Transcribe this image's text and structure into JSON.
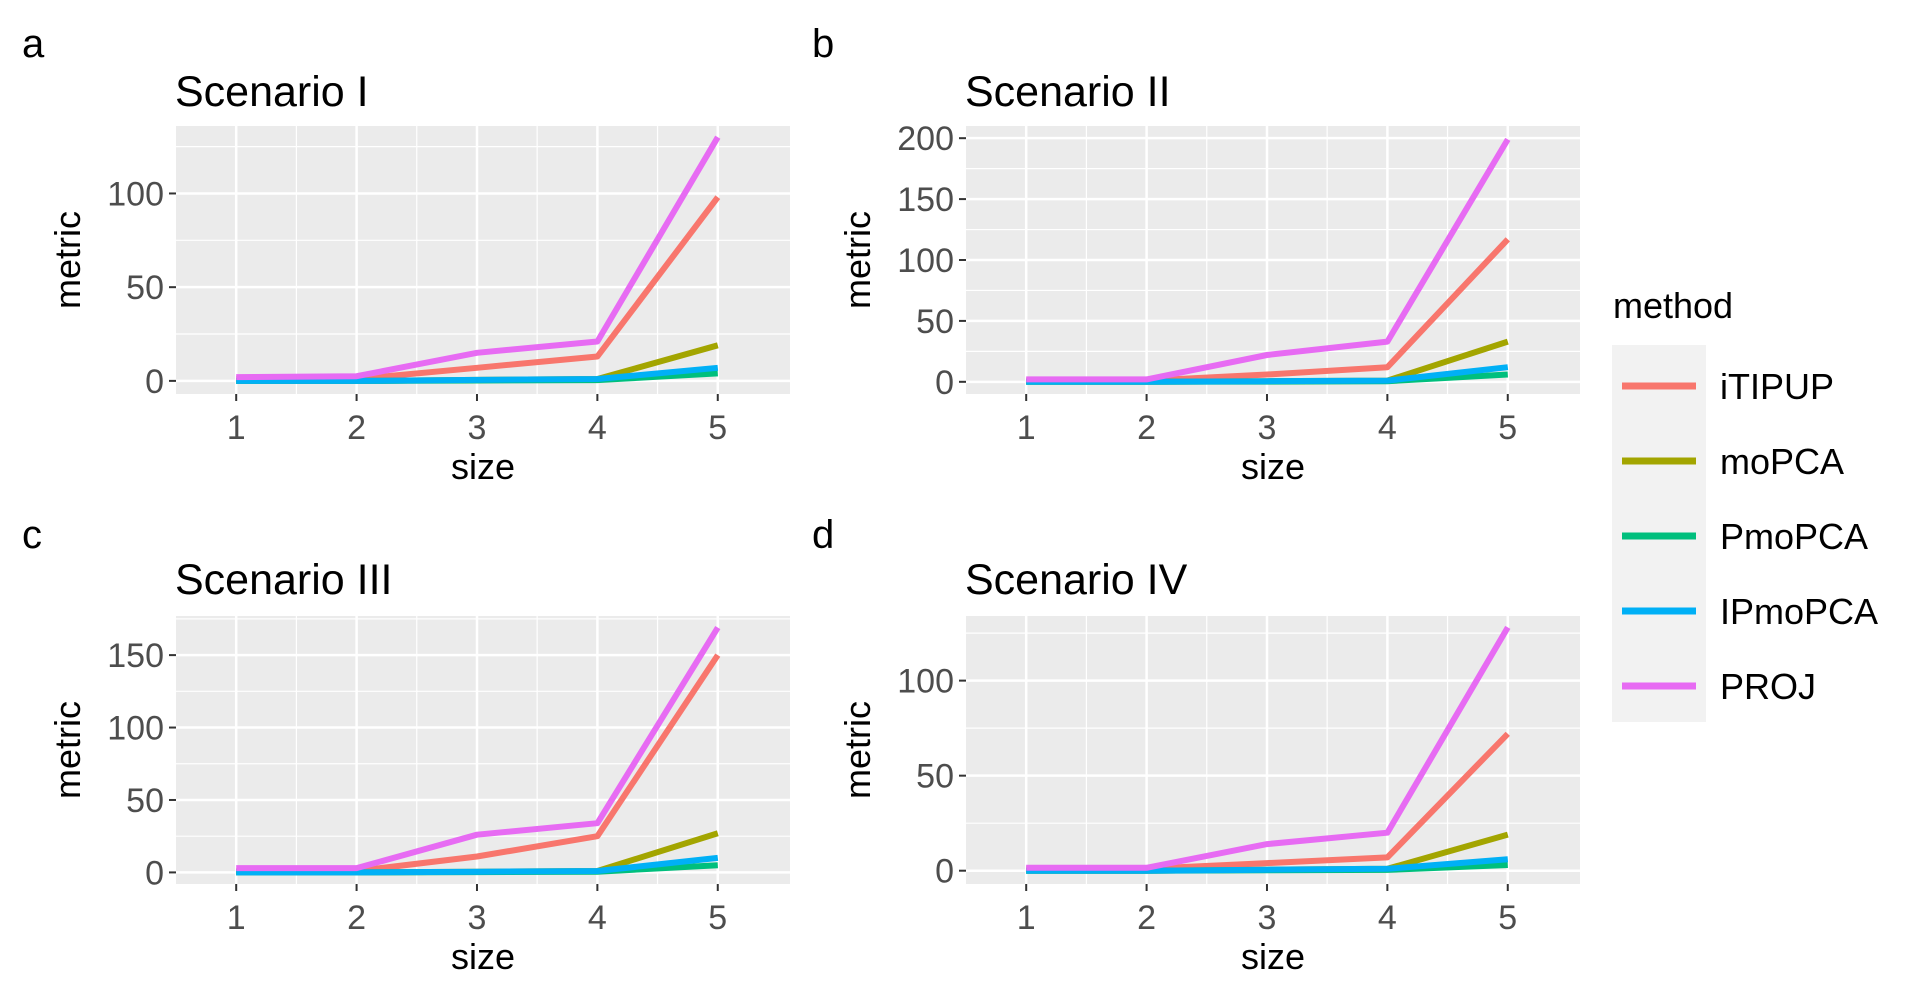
{
  "legend": {
    "title": "method",
    "entries": [
      {
        "name": "iTIPUP",
        "color": "#F8766D"
      },
      {
        "name": "moPCA",
        "color": "#A3A500"
      },
      {
        "name": "PmoPCA",
        "color": "#00BF7D"
      },
      {
        "name": "IPmoPCA",
        "color": "#00B0F6"
      },
      {
        "name": "PROJ",
        "color": "#E76BF3"
      }
    ]
  },
  "chart_data": [
    {
      "type": "line",
      "panel_label": "a",
      "title": "Scenario I",
      "xlabel": "size",
      "ylabel": "metric",
      "x": [
        1,
        2,
        3,
        4,
        5
      ],
      "xlim": [
        0.5,
        5.6
      ],
      "ylim": [
        -7,
        136
      ],
      "yticks": [
        0,
        50,
        100
      ],
      "yminor": [
        25,
        75,
        125
      ],
      "grid": true,
      "series": [
        {
          "name": "iTIPUP",
          "values": [
            1,
            1,
            7,
            13,
            98
          ]
        },
        {
          "name": "moPCA",
          "values": [
            0,
            0,
            0.5,
            1,
            19
          ]
        },
        {
          "name": "PmoPCA",
          "values": [
            0,
            0,
            0.2,
            0.4,
            4
          ]
        },
        {
          "name": "IPmoPCA",
          "values": [
            0,
            0,
            0.5,
            1,
            7
          ]
        },
        {
          "name": "PROJ",
          "values": [
            2,
            2.5,
            15,
            21,
            130
          ]
        }
      ]
    },
    {
      "type": "line",
      "panel_label": "b",
      "title": "Scenario II",
      "xlabel": "size",
      "ylabel": "metric",
      "x": [
        1,
        2,
        3,
        4,
        5
      ],
      "xlim": [
        0.5,
        5.6
      ],
      "ylim": [
        -10,
        210
      ],
      "yticks": [
        0,
        50,
        100,
        150,
        200
      ],
      "yminor": [
        25,
        75,
        125,
        175
      ],
      "grid": true,
      "series": [
        {
          "name": "iTIPUP",
          "values": [
            1,
            1,
            6,
            12,
            117
          ]
        },
        {
          "name": "moPCA",
          "values": [
            0,
            0,
            0.5,
            1,
            33
          ]
        },
        {
          "name": "PmoPCA",
          "values": [
            0,
            0,
            0.2,
            0.5,
            6
          ]
        },
        {
          "name": "IPmoPCA",
          "values": [
            0,
            0,
            0.5,
            1,
            12
          ]
        },
        {
          "name": "PROJ",
          "values": [
            2,
            2,
            22,
            33,
            199
          ]
        }
      ]
    },
    {
      "type": "line",
      "panel_label": "c",
      "title": "Scenario III",
      "xlabel": "size",
      "ylabel": "metric",
      "x": [
        1,
        2,
        3,
        4,
        5
      ],
      "xlim": [
        0.5,
        5.6
      ],
      "ylim": [
        -8,
        177
      ],
      "yticks": [
        0,
        50,
        100,
        150
      ],
      "yminor": [
        25,
        75,
        125,
        175
      ],
      "grid": true,
      "series": [
        {
          "name": "iTIPUP",
          "values": [
            1,
            1,
            11,
            25,
            150
          ]
        },
        {
          "name": "moPCA",
          "values": [
            0,
            0,
            0.5,
            1,
            27
          ]
        },
        {
          "name": "PmoPCA",
          "values": [
            0,
            0,
            0.2,
            0.5,
            5
          ]
        },
        {
          "name": "IPmoPCA",
          "values": [
            0,
            0,
            0.5,
            1,
            10
          ]
        },
        {
          "name": "PROJ",
          "values": [
            3,
            3,
            26,
            34,
            169
          ]
        }
      ]
    },
    {
      "type": "line",
      "panel_label": "d",
      "title": "Scenario IV",
      "xlabel": "size",
      "ylabel": "metric",
      "x": [
        1,
        2,
        3,
        4,
        5
      ],
      "xlim": [
        0.5,
        5.6
      ],
      "ylim": [
        -7,
        134
      ],
      "yticks": [
        0,
        50,
        100
      ],
      "yminor": [
        25,
        75,
        125
      ],
      "grid": true,
      "series": [
        {
          "name": "iTIPUP",
          "values": [
            1,
            1,
            4,
            7,
            72
          ]
        },
        {
          "name": "moPCA",
          "values": [
            0,
            0,
            0.5,
            1,
            19
          ]
        },
        {
          "name": "PmoPCA",
          "values": [
            0,
            0,
            0.2,
            0.4,
            3
          ]
        },
        {
          "name": "IPmoPCA",
          "values": [
            0,
            0,
            0.5,
            1,
            6
          ]
        },
        {
          "name": "PROJ",
          "values": [
            1.5,
            1.5,
            14,
            20,
            128
          ]
        }
      ]
    }
  ]
}
